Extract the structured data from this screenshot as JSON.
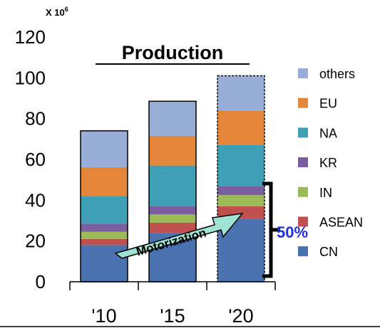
{
  "chart_data": {
    "type": "bar",
    "stacked": true,
    "title": "Production",
    "unit_label": "X 10",
    "unit_exponent": "6",
    "ylim": [
      0,
      120
    ],
    "yticks": [
      "0",
      "20",
      "40",
      "60",
      "80",
      "100",
      "120"
    ],
    "categories": [
      "'10",
      "'15",
      "'20"
    ],
    "series": [
      {
        "name": "CN",
        "color": "#4a72b0",
        "values": [
          18,
          24,
          31
        ]
      },
      {
        "name": "ASEAN",
        "color": "#c0504d",
        "values": [
          3,
          5,
          6
        ]
      },
      {
        "name": "IN",
        "color": "#9bbb59",
        "values": [
          3.5,
          4,
          5.5
        ]
      },
      {
        "name": "KR",
        "color": "#7a5ea0",
        "values": [
          4,
          4,
          4.5
        ]
      },
      {
        "name": "NA",
        "color": "#3fa0b5",
        "values": [
          13.5,
          20,
          20
        ]
      },
      {
        "name": "EU",
        "color": "#e4863a",
        "values": [
          14,
          14.5,
          17
        ]
      },
      {
        "name": "others",
        "color": "#98aed8",
        "values": [
          18,
          17,
          17
        ]
      }
    ],
    "projected_category_index": 2,
    "annotations": {
      "arrow_label": "Motorization",
      "share_label": "50%"
    },
    "legend_position": "right"
  }
}
